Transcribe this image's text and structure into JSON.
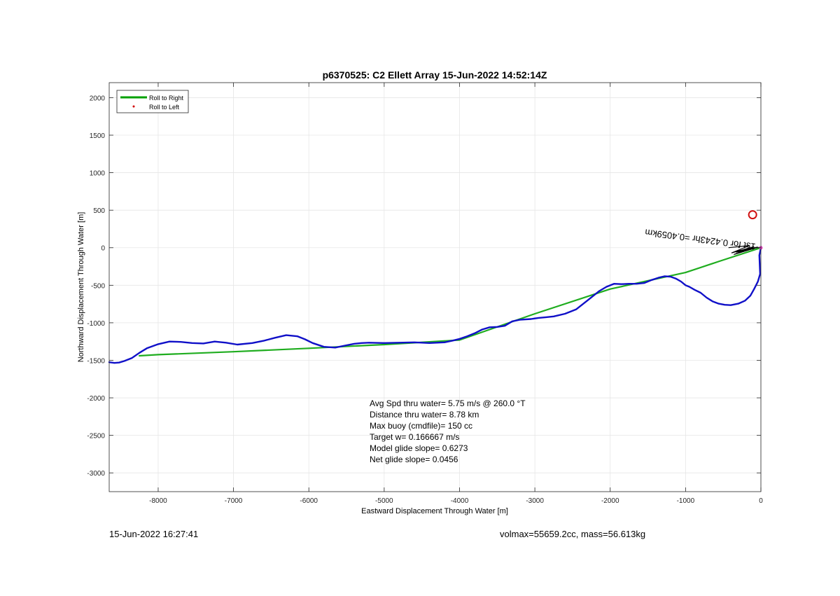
{
  "chart_data": {
    "type": "line",
    "title": "p6370525: C2 Ellett Array 15-Jun-2022 14:52:14Z",
    "xlabel": "Eastward Displacement Through Water [m]",
    "ylabel": "Northward Displacement Through Water [m]",
    "xlim": [
      -8650,
      0
    ],
    "ylim": [
      -3250,
      2200
    ],
    "xticks": [
      -8000,
      -7000,
      -6000,
      -5000,
      -4000,
      -3000,
      -2000,
      -1000,
      0
    ],
    "yticks": [
      2000,
      1500,
      1000,
      500,
      0,
      -500,
      -1000,
      -1500,
      -2000,
      -2500,
      -3000
    ],
    "grid": true,
    "legend": {
      "position": "top-left",
      "entries": [
        {
          "label": "Roll to Right",
          "color": "#00a000",
          "style": "line"
        },
        {
          "label": "Roll to Left",
          "color": "#d00000",
          "style": "dot"
        }
      ]
    },
    "series": [
      {
        "name": "Roll to Right",
        "color": "#1fad1f",
        "x": [
          0,
          -550,
          -1000,
          -2000,
          -3000,
          -4000,
          -5000,
          -6000,
          -7000,
          -8000,
          -8250
        ],
        "y": [
          0,
          -180,
          -330,
          -550,
          -880,
          -1230,
          -1290,
          -1340,
          -1385,
          -1425,
          -1440
        ]
      },
      {
        "name": "",
        "color": "#1010c8",
        "x": [
          0,
          -20,
          -10,
          -40,
          -90,
          -140,
          -210,
          -300,
          -400,
          -480,
          -560,
          -640,
          -720,
          -800,
          -880,
          -950,
          -1000,
          -1060,
          -1130,
          -1200,
          -1280,
          -1360,
          -1450,
          -1550,
          -1650,
          -1750,
          -1850,
          -1950,
          -2050,
          -2150,
          -2300,
          -2450,
          -2600,
          -2750,
          -2850,
          -2950,
          -3050,
          -3200,
          -3300,
          -3400,
          -3500,
          -3600,
          -3700,
          -3800,
          -3900,
          -4000,
          -4100,
          -4200,
          -4300,
          -4400,
          -4600,
          -4800,
          -5000,
          -5200,
          -5300,
          -5400,
          -5500,
          -5650,
          -5800,
          -5950,
          -6050,
          -6150,
          -6300,
          -6450,
          -6600,
          -6750,
          -6950,
          -7100,
          -7250,
          -7400,
          -7550,
          -7700,
          -7850,
          -8000,
          -8150,
          -8250,
          -8350,
          -8450,
          -8520,
          -8580,
          -8650
        ],
        "y": [
          0,
          -100,
          -350,
          -450,
          -550,
          -640,
          -705,
          -745,
          -765,
          -760,
          -745,
          -715,
          -665,
          -600,
          -560,
          -520,
          -500,
          -450,
          -410,
          -385,
          -380,
          -400,
          -430,
          -470,
          -480,
          -480,
          -485,
          -480,
          -520,
          -580,
          -700,
          -820,
          -880,
          -915,
          -925,
          -935,
          -950,
          -960,
          -980,
          -1040,
          -1055,
          -1060,
          -1090,
          -1140,
          -1180,
          -1215,
          -1240,
          -1260,
          -1265,
          -1270,
          -1260,
          -1265,
          -1270,
          -1265,
          -1270,
          -1280,
          -1300,
          -1330,
          -1320,
          -1270,
          -1220,
          -1180,
          -1165,
          -1200,
          -1240,
          -1270,
          -1290,
          -1265,
          -1250,
          -1275,
          -1270,
          -1255,
          -1250,
          -1285,
          -1340,
          -1400,
          -1470,
          -1510,
          -1530,
          -1535,
          -1525
        ]
      }
    ],
    "markers": [
      {
        "label": "red-circle-marker",
        "x": -110,
        "y": 440,
        "color": "#d01010"
      }
    ],
    "annotations": {
      "rotated_label": "1st for 0.4243hr =0.4059km",
      "stats": [
        "Avg Spd thru water=  5.75 m/s @ 260.0 °T",
        "Distance thru water=  8.78 km",
        "Max buoy (cmdfile)= 150 cc",
        "Target w= 0.166667 m/s",
        "Model glide slope= 0.6273",
        "Net glide slope= 0.0456"
      ]
    }
  },
  "footer": {
    "timestamp": "15-Jun-2022 16:27:41",
    "volmass": "volmax=55659.2cc, mass=56.613kg"
  }
}
